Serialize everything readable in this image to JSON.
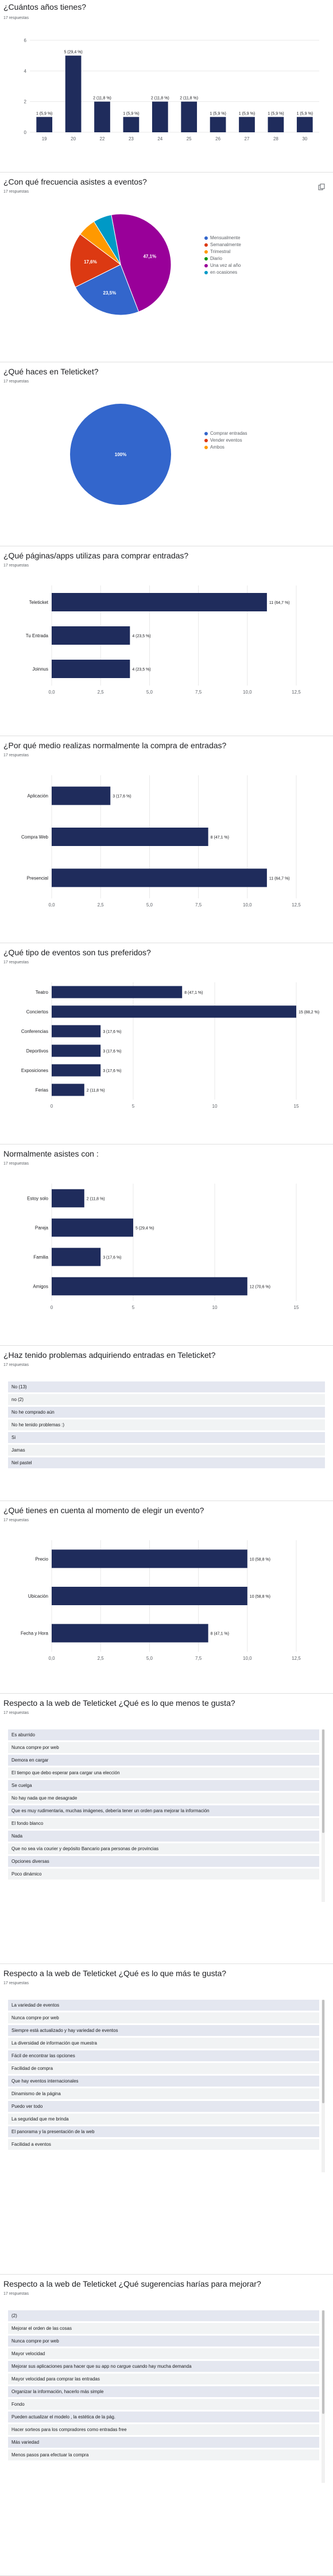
{
  "colors": {
    "bar": "#1f2c5c",
    "grid": "#e8e8e8",
    "axis_text": "#5f6368",
    "title": "#202124",
    "pie": [
      "#3366cc",
      "#dc3912",
      "#ff9900",
      "#109618",
      "#990099",
      "#0099c6"
    ]
  },
  "questions": [
    {
      "id": "edad",
      "title": "¿Cuántos años tienes?",
      "responses": "17 respuestas",
      "chart_data": {
        "type": "bar",
        "orientation": "vertical",
        "categories": [
          "19",
          "20",
          "22",
          "23",
          "24",
          "25",
          "26",
          "27",
          "28",
          "30"
        ],
        "values": [
          1,
          5,
          2,
          1,
          2,
          2,
          1,
          1,
          1,
          1
        ],
        "data_labels": [
          "1 (5,9 %)",
          "5 (29,4 %)",
          "2 (11,8 %)",
          "1 (5,9 %)",
          "2 (11,8 %)",
          "2 (11,8 %)",
          "1 (5,9 %)",
          "1 (5,9 %)",
          "1 (5,9 %)",
          "1 (5,9 %)"
        ],
        "ylim": [
          0,
          6
        ],
        "yticks": [
          "0",
          "2",
          "4",
          "6"
        ],
        "grid": true
      }
    },
    {
      "id": "frecuencia",
      "title": "¿Con qué frecuencia asistes a eventos?",
      "responses": "17 respuestas",
      "chart_data": {
        "type": "pie",
        "categories": [
          "Mensualmente",
          "Semanalmente",
          "Trimestral",
          "Diario",
          "Una vez al año",
          "en ocasiones"
        ],
        "values": [
          23.5,
          17.6,
          5.9,
          0,
          47.1,
          5.9
        ],
        "data_labels": [
          "23,5%",
          "17,6%",
          "",
          "",
          "47,1%",
          ""
        ],
        "legend": "right"
      }
    },
    {
      "id": "teleticket",
      "title": "¿Qué haces en Teleticket?",
      "responses": "17 respuestas",
      "chart_data": {
        "type": "pie",
        "categories": [
          "Comprar entradas",
          "Vender eventos",
          "Ambos"
        ],
        "values": [
          100,
          0,
          0
        ],
        "data_labels": [
          "100%",
          "",
          ""
        ],
        "legend": "right"
      }
    },
    {
      "id": "paginas",
      "title": "¿Qué páginas/apps utilizas para comprar entradas?",
      "responses": "17 respuestas",
      "chart_data": {
        "type": "bar",
        "orientation": "horizontal",
        "categories": [
          "Teleticket",
          "Tu Entrada",
          "Joinnus"
        ],
        "values": [
          11,
          4,
          4
        ],
        "data_labels": [
          "11 (64,7 %)",
          "4 (23,5 %)",
          "4 (23,5 %)"
        ],
        "xlim": [
          0,
          12.5
        ],
        "xticks": [
          "0,0",
          "2,5",
          "5,0",
          "7,5",
          "10,0",
          "12,5"
        ],
        "grid": true
      }
    },
    {
      "id": "medio",
      "title": "¿Por qué medio realizas normalmente la compra de entradas?",
      "responses": "17 respuestas",
      "chart_data": {
        "type": "bar",
        "orientation": "horizontal",
        "categories": [
          "Aplicación",
          "Compra Web",
          "Presencial"
        ],
        "values": [
          3,
          8,
          11
        ],
        "data_labels": [
          "3 (17,6 %)",
          "8 (47,1 %)",
          "11 (64,7 %)"
        ],
        "xlim": [
          0,
          12.5
        ],
        "xticks": [
          "0,0",
          "2,5",
          "5,0",
          "7,5",
          "10,0",
          "12,5"
        ],
        "grid": true
      }
    },
    {
      "id": "tipo",
      "title": "¿Qué tipo de eventos son tus preferidos?",
      "responses": "17 respuestas",
      "chart_data": {
        "type": "bar",
        "orientation": "horizontal",
        "categories": [
          "Teatro",
          "Conciertos",
          "Conferencias",
          "Deportivos",
          "Exposiciones",
          "Ferias"
        ],
        "values": [
          8,
          15,
          3,
          3,
          3,
          2
        ],
        "data_labels": [
          "8 (47,1 %)",
          "15 (88,2 %)",
          "3 (17,6 %)",
          "3 (17,6 %)",
          "3 (17,6 %)",
          "2 (11,8 %)"
        ],
        "xlim": [
          0,
          15
        ],
        "xticks": [
          "0",
          "5",
          "10",
          "15"
        ],
        "grid": true
      }
    },
    {
      "id": "asistes",
      "title": "Normalmente asistes con :",
      "responses": "17 respuestas",
      "chart_data": {
        "type": "bar",
        "orientation": "horizontal",
        "categories": [
          "Estoy solo",
          "Pareja",
          "Familia",
          "Amigos"
        ],
        "values": [
          2,
          5,
          3,
          12
        ],
        "data_labels": [
          "2 (11,8 %)",
          "5 (29,4 %)",
          "3 (17,6 %)",
          "12 (70,6 %)"
        ],
        "xlim": [
          0,
          15
        ],
        "xticks": [
          "0",
          "5",
          "10",
          "15"
        ],
        "grid": true
      }
    },
    {
      "id": "problemas",
      "title": "¿Haz tenido problemas adquiriendo entradas en Teleticket?",
      "responses": "17 respuestas",
      "list": [
        "No (13)",
        "no (2)",
        "No he comprado aún",
        "No he tenido problemas :)",
        "Si",
        "Jamas",
        "Nel pastel"
      ]
    },
    {
      "id": "cuenta",
      "title": "¿Qué tienes en cuenta al momento de elegir un evento?",
      "responses": "17 respuestas",
      "chart_data": {
        "type": "bar",
        "orientation": "horizontal",
        "categories": [
          "Precio",
          "Ubicación",
          "Fecha y Hora"
        ],
        "values": [
          10,
          10,
          8
        ],
        "data_labels": [
          "10 (58,8 %)",
          "10 (58,8 %)",
          "8 (47,1 %)"
        ],
        "xlim": [
          0,
          12.5
        ],
        "xticks": [
          "0,0",
          "2,5",
          "5,0",
          "7,5",
          "10,0",
          "12,5"
        ],
        "grid": true
      }
    },
    {
      "id": "menos",
      "title": "Respecto a la web de Teleticket ¿Qué es lo que menos te gusta?",
      "responses": "17 respuestas",
      "list": [
        "Es aburrido",
        "Nunca compre por web",
        "Demora en cargar",
        "El tiempo que debo esperar para cargar una elección",
        "Se cuelga",
        "No hay nada que me desagrade",
        "Que es muy rudimentaria, muchas imágenes, debería tener un orden para mejorar la información",
        "El fondo blanco",
        "Nada",
        "Que no sea vía courier y depósito Bancario para personas de provincias",
        "Opciones diversas",
        "Poco dinámico"
      ],
      "scroll": true
    },
    {
      "id": "mas",
      "title": "Respecto a la web de Teleticket ¿Qué es lo que más te gusta?",
      "responses": "17 respuestas",
      "list": [
        "La variedad de eventos",
        "Nunca compre por web",
        "Siempre está actualizado y hay variedad de eventos",
        "La diversidad de información que muestra",
        "Fácil de encontrar las opciones",
        "Facilidad de compra",
        "Que hay eventos internacionales",
        "Dinamismo de la página",
        "Puedo ver todo",
        "La seguridad que me brinda",
        "El panorama y la presentación de la web",
        "Facilidad a eventos"
      ],
      "scroll": true
    },
    {
      "id": "sugerencias",
      "title": "Respecto a la web de Teleticket ¿Qué sugerencias harías para mejorar?",
      "responses": "17 respuestas",
      "list": [
        "(2)",
        "Mejorar el orden de las cosas",
        "Nunca compre por web",
        "Mayor velocidad",
        "Mejorar sus aplicaciones para hacer que su app no cargue cuando hay mucha demanda",
        "Mayor velocidad para comprar las entradas",
        "Organizar la información, hacerlo más simple",
        "Fondo",
        "Pueden actualizar el modelo , la estética de la pág.",
        "Hacer sorteos para los compradores como entradas free",
        "Más variedad",
        "Menos pasos para efectuar la compra"
      ],
      "scroll": true
    }
  ]
}
